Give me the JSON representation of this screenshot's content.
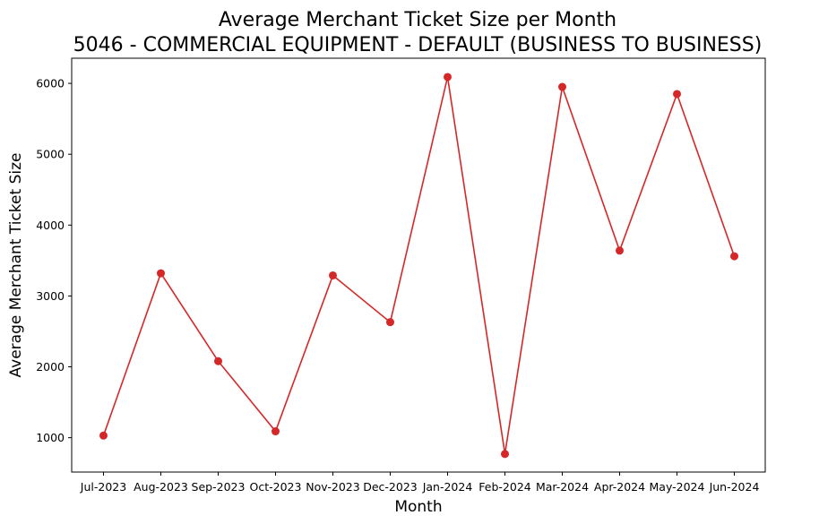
{
  "chart_data": {
    "type": "line",
    "title": "Average Merchant Ticket Size per Month",
    "subtitle": "5046 - COMMERCIAL EQUIPMENT - DEFAULT (BUSINESS TO BUSINESS)",
    "xlabel": "Month",
    "ylabel": "Average Merchant Ticket Size",
    "categories": [
      "Jul-2023",
      "Aug-2023",
      "Sep-2023",
      "Oct-2023",
      "Nov-2023",
      "Dec-2023",
      "Jan-2024",
      "Feb-2024",
      "Mar-2024",
      "Apr-2024",
      "May-2024",
      "Jun-2024"
    ],
    "series": [
      {
        "values": [
          1030,
          3320,
          2080,
          1090,
          3290,
          2630,
          6090,
          770,
          5950,
          3640,
          5850,
          3560
        ]
      }
    ],
    "ylim": [
      515,
      6355
    ],
    "yticks": [
      1000,
      2000,
      3000,
      4000,
      5000,
      6000
    ],
    "grid": false,
    "line_color": "#d62728",
    "marker": "circle"
  }
}
